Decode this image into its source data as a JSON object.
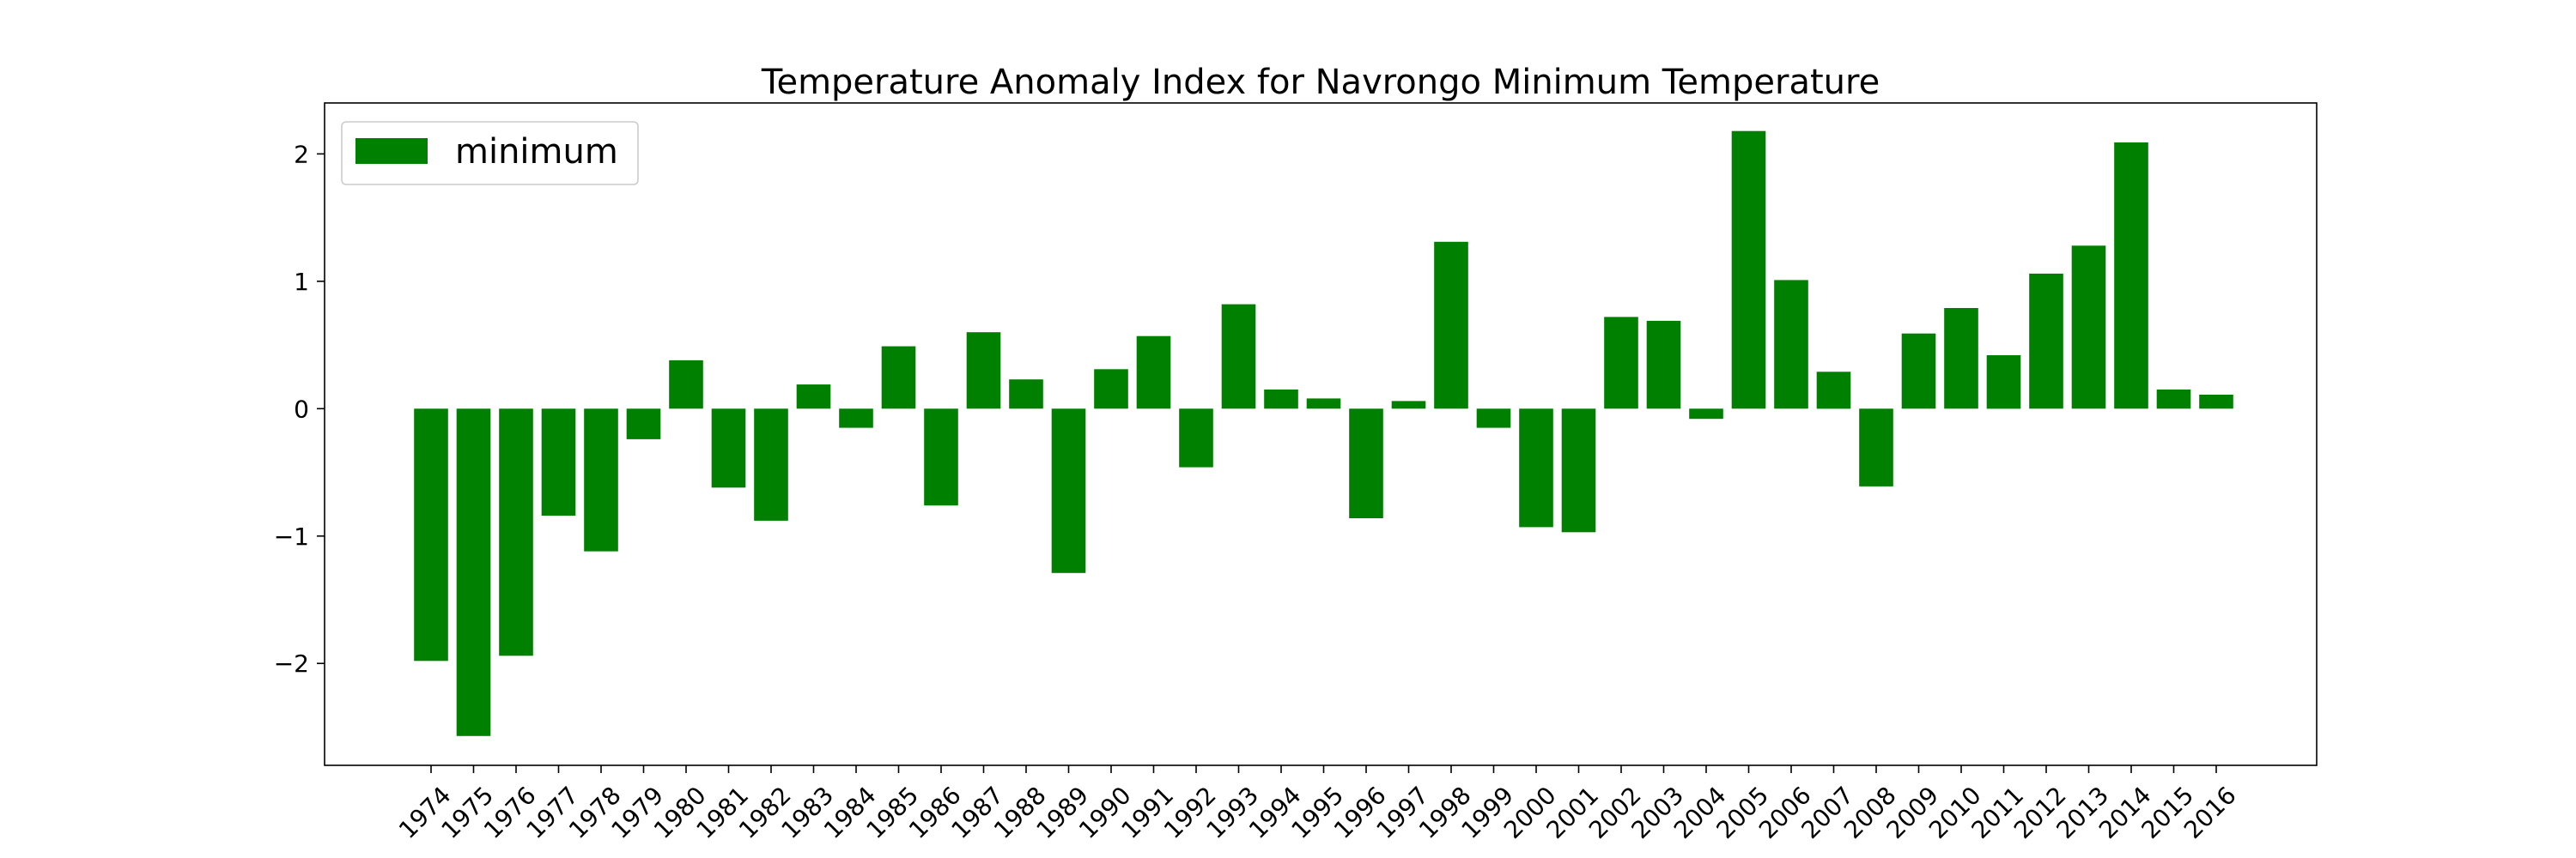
{
  "chart_data": {
    "type": "bar",
    "title": "Temperature Anomaly Index for Navrongo Minimum Temperature",
    "xlabel": "",
    "ylabel": "",
    "ylim": [
      -2.8,
      2.4
    ],
    "yticks": [
      2,
      1,
      0,
      -1,
      -2
    ],
    "ytick_labels": [
      "2",
      "1",
      "0",
      "−1",
      "−2"
    ],
    "grid": false,
    "legend_position": "top-left",
    "bar_color": "#008000",
    "categories": [
      "1974",
      "1975",
      "1976",
      "1977",
      "1978",
      "1979",
      "1980",
      "1981",
      "1982",
      "1983",
      "1984",
      "1985",
      "1986",
      "1987",
      "1988",
      "1989",
      "1990",
      "1991",
      "1992",
      "1993",
      "1994",
      "1995",
      "1996",
      "1997",
      "1998",
      "1999",
      "2000",
      "2001",
      "2002",
      "2003",
      "2004",
      "2005",
      "2006",
      "2007",
      "2008",
      "2009",
      "2010",
      "2011",
      "2012",
      "2013",
      "2014",
      "2015",
      "2016"
    ],
    "series": [
      {
        "name": "minimum",
        "values": [
          -1.98,
          -2.57,
          -1.94,
          -0.84,
          -1.12,
          -0.24,
          0.38,
          -0.62,
          -0.88,
          0.19,
          -0.15,
          0.49,
          -0.76,
          0.6,
          0.23,
          -1.29,
          0.31,
          0.57,
          -0.46,
          0.82,
          0.15,
          0.08,
          -0.86,
          0.06,
          1.31,
          -0.15,
          -0.93,
          -0.97,
          0.72,
          0.69,
          -0.08,
          2.18,
          1.01,
          0.29,
          -0.61,
          0.59,
          0.79,
          0.42,
          1.06,
          1.28,
          2.09,
          0.15,
          0.11
        ]
      }
    ]
  }
}
